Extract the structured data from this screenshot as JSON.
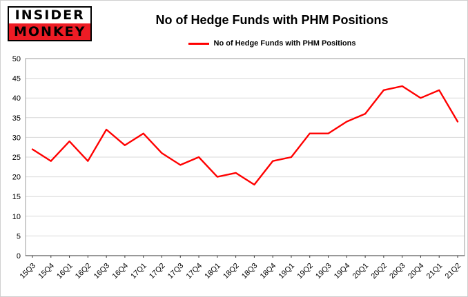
{
  "logo": {
    "top": "INSIDER",
    "bottom": "MONKEY",
    "red": "#ee1c25"
  },
  "header": {
    "title": "No of Hedge Funds with PHM Positions"
  },
  "legend": {
    "label": "No of Hedge Funds with PHM Positions"
  },
  "chart_data": {
    "type": "line",
    "title": "No of Hedge Funds with PHM Positions",
    "categories": [
      "15Q3",
      "15Q4",
      "16Q1",
      "16Q2",
      "16Q3",
      "16Q4",
      "17Q1",
      "17Q2",
      "17Q3",
      "17Q4",
      "18Q1",
      "18Q2",
      "18Q3",
      "18Q4",
      "19Q1",
      "19Q2",
      "19Q3",
      "19Q4",
      "20Q1",
      "20Q2",
      "20Q3",
      "20Q4",
      "21Q1",
      "21Q2"
    ],
    "values": [
      27,
      24,
      29,
      24,
      32,
      28,
      31,
      26,
      23,
      25,
      20,
      21,
      18,
      24,
      25,
      31,
      31,
      34,
      36,
      42,
      43,
      40,
      42,
      34
    ],
    "xlabel": "",
    "ylabel": "",
    "ylim": [
      0,
      50
    ],
    "ytick_step": 5,
    "grid": true,
    "legend_position": "top",
    "line_color": "#ff0000",
    "grid_color": "#d9d9d9",
    "axis_color": "#9b9b9b"
  }
}
